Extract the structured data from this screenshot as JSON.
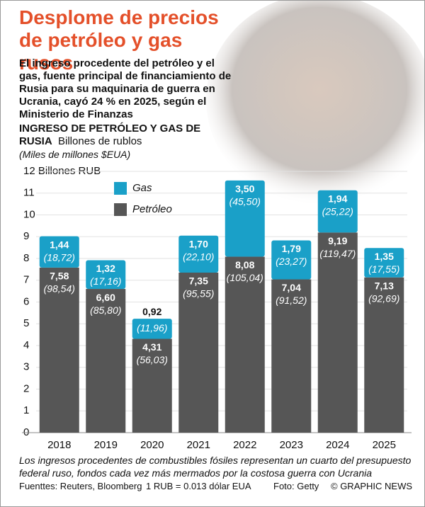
{
  "chart_data": {
    "type": "stacked_bar",
    "title": "Desplome de precios de petróleo y gas rusos",
    "subtitle": "El ingreso procedente del petróleo y el gas, fuente principal de financiamiento de Rusia para su maquinaria de guerra en Ucrania, cayó 24 % en 2025, según el Ministerio de Finanzas",
    "chart_heading": "INGRESO DE PETRÓLEO Y GAS DE RUSIA",
    "chart_unit": "Billones de rublos",
    "chart_unit_secondary": "(Miles de millones $EUA)",
    "categories": [
      "2018",
      "2019",
      "2020",
      "2021",
      "2022",
      "2023",
      "2024",
      "2025"
    ],
    "series": [
      {
        "name": "Petróleo",
        "color": "#565656",
        "values": [
          7.58,
          6.6,
          4.31,
          7.35,
          8.08,
          7.04,
          9.19,
          7.13
        ],
        "value_labels": [
          "7,58",
          "6,60",
          "4,31",
          "7,35",
          "8,08",
          "7,04",
          "9,19",
          "7,13"
        ],
        "usd_labels": [
          "(98,54)",
          "(85,80)",
          "(56,03)",
          "(95,55)",
          "(105,04)",
          "(91,52)",
          "(119,47)",
          "(92,69)"
        ]
      },
      {
        "name": "Gas",
        "color": "#1aa0c8",
        "values": [
          1.44,
          1.32,
          0.92,
          1.7,
          3.5,
          1.79,
          1.94,
          1.35
        ],
        "value_labels": [
          "1,44",
          "1,32",
          "0,92",
          "1,70",
          "3,50",
          "1,79",
          "1,94",
          "1,35"
        ],
        "usd_labels": [
          "(18,72)",
          "(17,16)",
          "(11,96)",
          "(22,10)",
          "(45,50)",
          "(23,27)",
          "(25,22)",
          "(17,55)"
        ]
      }
    ],
    "ylim": [
      0,
      12
    ],
    "yticks": [
      0,
      1,
      2,
      3,
      4,
      5,
      6,
      7,
      8,
      9,
      10,
      11,
      {
        "value": 12,
        "label": "12 Billones RUB"
      }
    ],
    "grid": true,
    "footnote": "Los ingresos procedentes de combustibles fósiles representan un cuarto del presupuesto federal ruso, fondos cada vez más mermados por la costosa guerra con Ucrania",
    "sources": [
      "Fuenttes: Reuters, Bloomberg",
      "1 RUB = 0.013 dólar EUA",
      "Foto: Getty",
      "© GRAPHIC NEWS"
    ]
  }
}
